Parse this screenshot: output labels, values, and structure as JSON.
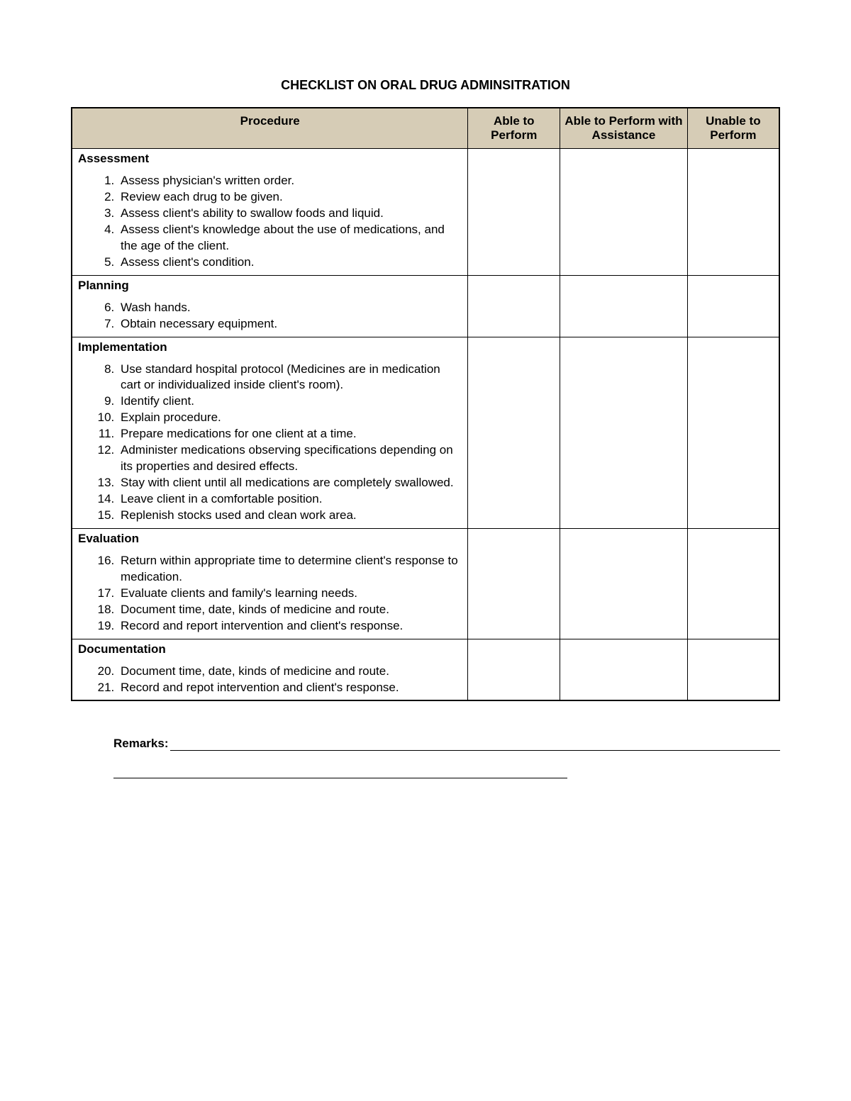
{
  "title": "CHECKLIST ON ORAL DRUG ADMINSITRATION",
  "columns": {
    "procedure": "Procedure",
    "able": "Able to Perform",
    "assist": "Able to Perform with Assistance",
    "unable": "Unable to Perform"
  },
  "header_bg": "#d6ccb6",
  "border_color": "#000000",
  "font_family": "Arial, Helvetica, sans-serif",
  "sections": [
    {
      "title": "Assessment",
      "start": 1,
      "items": [
        "Assess physician's written order.",
        "Review each drug to be given.",
        "Assess client's ability to swallow foods and liquid.",
        "Assess client's knowledge about the use of medications, and the age of the client.",
        "Assess client's condition."
      ]
    },
    {
      "title": "Planning",
      "start": 6,
      "items": [
        "Wash hands.",
        "Obtain necessary equipment."
      ]
    },
    {
      "title": "Implementation",
      "start": 8,
      "items": [
        "Use standard hospital protocol (Medicines are in medication cart or individualized inside client's room).",
        "Identify client.",
        "Explain procedure.",
        "Prepare medications for one client at a time.",
        "Administer medications observing specifications depending on its properties and desired effects.",
        "Stay with client until all medications are completely swallowed.",
        "Leave client in a comfortable position.",
        "Replenish stocks used and clean work area."
      ]
    },
    {
      "title": "Evaluation",
      "start": 16,
      "items": [
        "Return within appropriate time to determine client's response to medication.",
        "Evaluate clients and family's learning needs.",
        "Document time, date, kinds of medicine and route.",
        "Record and report intervention and client's response."
      ]
    },
    {
      "title": "Documentation",
      "start": 20,
      "items": [
        "Document time, date, kinds of medicine and route.",
        "Record and repot intervention and client's response."
      ]
    }
  ],
  "remarks_label": "Remarks:"
}
